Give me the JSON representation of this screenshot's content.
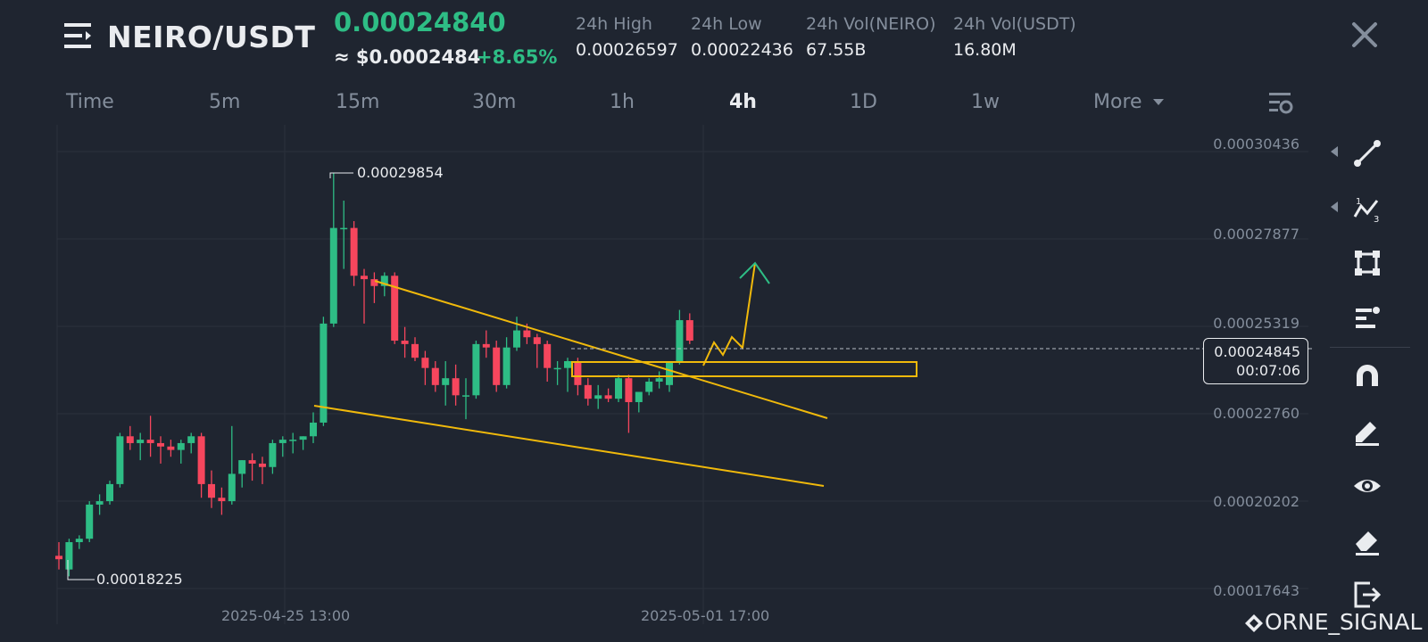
{
  "header": {
    "pair": "NEIRO/USDT",
    "price": "0.00024840",
    "usd_price": "≈ $0.0002484",
    "change": "+8.65%",
    "stats": [
      {
        "label": "24h High",
        "value": "0.00026597"
      },
      {
        "label": "24h Low",
        "value": "0.00022436"
      },
      {
        "label": "24h Vol(NEIRO)",
        "value": "67.55B"
      },
      {
        "label": "24h Vol(USDT)",
        "value": "16.80M"
      }
    ],
    "icons": {
      "menu": "menu-icon",
      "close": "close-icon"
    }
  },
  "tabs": [
    "Time",
    "5m",
    "15m",
    "30m",
    "1h",
    "4h",
    "1D",
    "1w",
    "More"
  ],
  "active_tab": "4h",
  "colors": {
    "up": "#2ebd85",
    "down": "#f6465d",
    "trendline": "#f0b90b",
    "background": "#1f2530",
    "grid": "#2b313c"
  },
  "chart_data": {
    "type": "candlestick",
    "y_ticks": [
      "0.00030436",
      "0.00027877",
      "0.00025319",
      "0.00022760",
      "0.00020202",
      "0.00017643"
    ],
    "ylim": [
      0.00017643,
      0.00030436
    ],
    "x_ticks": [
      "2025-04-25 13:00",
      "2025-05-01 17:00"
    ],
    "high_label": "0.00029854",
    "low_label": "0.00018225",
    "last_price": "0.00024845",
    "countdown": "00:07:06",
    "candles": [
      [
        0.000186,
        0.00019,
        0.000182,
        0.000185
      ],
      [
        0.000182,
        0.000191,
        0.00018,
        0.00019
      ],
      [
        0.00019,
        0.000192,
        0.000188,
        0.000191
      ],
      [
        0.000191,
        0.000202,
        0.00019,
        0.000201
      ],
      [
        0.000201,
        0.000204,
        0.000198,
        0.000202
      ],
      [
        0.000202,
        0.000208,
        0.000201,
        0.000207
      ],
      [
        0.000207,
        0.000222,
        0.000206,
        0.000221
      ],
      [
        0.000221,
        0.000224,
        0.000217,
        0.000219
      ],
      [
        0.000219,
        0.000222,
        0.000214,
        0.00022
      ],
      [
        0.00022,
        0.000227,
        0.000215,
        0.000219
      ],
      [
        0.000219,
        0.000221,
        0.000213,
        0.000218
      ],
      [
        0.000218,
        0.00022,
        0.000215,
        0.000217
      ],
      [
        0.000217,
        0.00022,
        0.000213,
        0.000219
      ],
      [
        0.000219,
        0.000222,
        0.000216,
        0.000221
      ],
      [
        0.000221,
        0.000222,
        0.000203,
        0.000207
      ],
      [
        0.000207,
        0.000211,
        0.0002,
        0.000203
      ],
      [
        0.000203,
        0.000206,
        0.000198,
        0.000202
      ],
      [
        0.000202,
        0.000224,
        0.000201,
        0.00021
      ],
      [
        0.00021,
        0.000214,
        0.000206,
        0.000214
      ],
      [
        0.000214,
        0.000216,
        0.000208,
        0.000213
      ],
      [
        0.000213,
        0.000215,
        0.000207,
        0.000212
      ],
      [
        0.000212,
        0.00022,
        0.00021,
        0.000219
      ],
      [
        0.000219,
        0.000221,
        0.000215,
        0.00022
      ],
      [
        0.00022,
        0.000222,
        0.000216,
        0.00022
      ],
      [
        0.00022,
        0.000221,
        0.000217,
        0.000221
      ],
      [
        0.000221,
        0.000228,
        0.000219,
        0.000225
      ],
      [
        0.000225,
        0.000256,
        0.000224,
        0.000254
      ],
      [
        0.000254,
        0.000298,
        0.000253,
        0.000282
      ],
      [
        0.000282,
        0.00029,
        0.00027,
        0.000282
      ],
      [
        0.000282,
        0.000284,
        0.000265,
        0.000268
      ],
      [
        0.000268,
        0.00027,
        0.000254,
        0.000267
      ],
      [
        0.000267,
        0.000269,
        0.00026,
        0.000265
      ],
      [
        0.000265,
        0.000269,
        0.000262,
        0.000268
      ],
      [
        0.000268,
        0.000269,
        0.000248,
        0.000249
      ],
      [
        0.000249,
        0.000253,
        0.000244,
        0.000248
      ],
      [
        0.000248,
        0.00025,
        0.000243,
        0.000244
      ],
      [
        0.000244,
        0.000246,
        0.000236,
        0.000241
      ],
      [
        0.000241,
        0.000243,
        0.000234,
        0.000236
      ],
      [
        0.000236,
        0.000243,
        0.00023,
        0.000238
      ],
      [
        0.000238,
        0.000242,
        0.00023,
        0.000233
      ],
      [
        0.000233,
        0.000238,
        0.000226,
        0.000233
      ],
      [
        0.000233,
        0.000249,
        0.000232,
        0.000248
      ],
      [
        0.000248,
        0.000252,
        0.000244,
        0.000247
      ],
      [
        0.000247,
        0.000249,
        0.000234,
        0.000236
      ],
      [
        0.000236,
        0.00025,
        0.000235,
        0.000247
      ],
      [
        0.000247,
        0.000256,
        0.000246,
        0.000252
      ],
      [
        0.000252,
        0.000254,
        0.000248,
        0.00025
      ],
      [
        0.00025,
        0.000251,
        0.000241,
        0.000248
      ],
      [
        0.000248,
        0.000249,
        0.000237,
        0.000241
      ],
      [
        0.000241,
        0.000243,
        0.000236,
        0.000241
      ],
      [
        0.000241,
        0.000244,
        0.000234,
        0.000243
      ],
      [
        0.000243,
        0.000244,
        0.000233,
        0.000236
      ],
      [
        0.000236,
        0.000238,
        0.00023,
        0.000232
      ],
      [
        0.000232,
        0.000236,
        0.000229,
        0.000233
      ],
      [
        0.000233,
        0.000235,
        0.000231,
        0.000232
      ],
      [
        0.000232,
        0.000239,
        0.000231,
        0.000238
      ],
      [
        0.000238,
        0.000239,
        0.000222,
        0.000231
      ],
      [
        0.000231,
        0.000234,
        0.000228,
        0.000234
      ],
      [
        0.000234,
        0.000238,
        0.000233,
        0.000237
      ],
      [
        0.000237,
        0.00024,
        0.000235,
        0.000238
      ],
      [
        0.000236,
        0.000243,
        0.000234,
        0.000243
      ],
      [
        0.000243,
        0.000258,
        0.000242,
        0.000255
      ],
      [
        0.000255,
        0.000257,
        0.000248,
        0.000249
      ]
    ]
  },
  "toolbar": {
    "icons": [
      "trend-line-icon",
      "zigzag-icon",
      "rectangle-icon",
      "text-tool-icon",
      "magnet-icon",
      "pencil-icon",
      "eye-icon",
      "eraser-icon",
      "exit-icon"
    ]
  },
  "watermark": "ORNE_SIGNAL"
}
